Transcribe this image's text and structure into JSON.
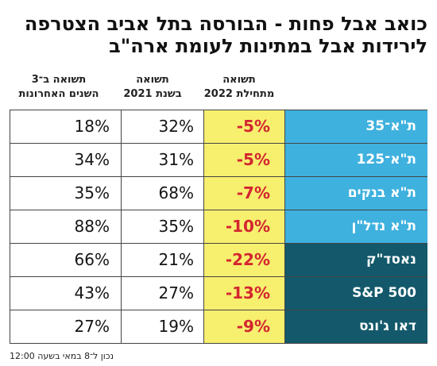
{
  "title": {
    "line1": "כואב אבל פחות - הבורסה בתל אביב הצטרפה",
    "line2": "לירידות אבל במתינות לעומת ארה\"ב"
  },
  "headers": {
    "col_2022": [
      "תשואה",
      "מתחילת 2022"
    ],
    "col_2021": [
      "תשואה",
      "בשנת 2021"
    ],
    "col_3y": [
      "תשואה ב־3",
      "השנים האחרונות"
    ]
  },
  "colors": {
    "israel_index_bg": "#3eb1de",
    "us_index_bg": "#13596b",
    "ytd_highlight_bg": "#f7ef6e",
    "ytd_text": "#d3262f"
  },
  "chart_data": {
    "type": "table",
    "title": "כואב אבל פחות - הבורסה בתל אביב הצטרפה לירידות אבל במתינות לעומת ארה\"ב",
    "columns": [
      "",
      "תשואה מתחילת 2022",
      "תשואה בשנת 2021",
      "תשואה ב־3 השנים האחרונות"
    ],
    "rows": [
      {
        "name": "ת\"א־35",
        "group": "israel",
        "ytd_2022": "-5%",
        "y2021": "32%",
        "y3": "18%"
      },
      {
        "name": "ת\"א־125",
        "group": "israel",
        "ytd_2022": "-5%",
        "y2021": "31%",
        "y3": "34%"
      },
      {
        "name": "ת\"א בנקים",
        "group": "israel",
        "ytd_2022": "-7%",
        "y2021": "68%",
        "y3": "35%"
      },
      {
        "name": "ת\"א נדל\"ן",
        "group": "israel",
        "ytd_2022": "-10%",
        "y2021": "35%",
        "y3": "88%"
      },
      {
        "name": "נאסד\"ק",
        "group": "us",
        "ytd_2022": "-22%",
        "y2021": "21%",
        "y3": "66%"
      },
      {
        "name": "S&P 500",
        "group": "us",
        "ytd_2022": "-13%",
        "y2021": "27%",
        "y3": "43%"
      },
      {
        "name": "דאו ג'ונס",
        "group": "us",
        "ytd_2022": "-9%",
        "y2021": "19%",
        "y3": "27%"
      }
    ]
  },
  "footer": "נכון ל־8 במאי בשעה 12:00"
}
